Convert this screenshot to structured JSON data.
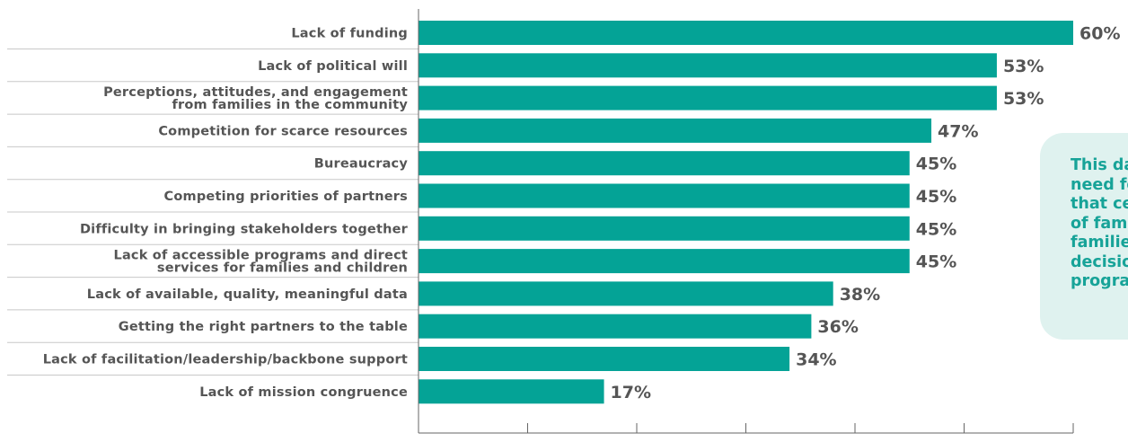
{
  "chart_data": {
    "type": "bar",
    "orientation": "horizontal",
    "categories": [
      "Lack of funding",
      "Lack of political will",
      "Perceptions, attitudes, and engagement\nfrom families in the community",
      "Competition for scarce resources",
      "Bureaucracy",
      "Competing priorities of partners",
      "Difficulty in bringing stakeholders together",
      "Lack of accessible programs and direct\nservices for families and children",
      "Lack of available, quality, meaningful data",
      "Getting the right partners to the table",
      "Lack of facilitation/leadership/backbone support",
      "Lack of mission congruence"
    ],
    "values": [
      60,
      53,
      53,
      47,
      45,
      45,
      45,
      45,
      38,
      36,
      34,
      17
    ],
    "value_labels": [
      "60%",
      "53%",
      "53%",
      "47%",
      "45%",
      "45%",
      "45%",
      "45%",
      "38%",
      "36%",
      "34%",
      "17%"
    ],
    "xlim": [
      0,
      60
    ],
    "xticks": [
      "0%",
      "10%",
      "20%",
      "30%",
      "40%",
      "50%",
      "60%"
    ],
    "bar_color": "#04a396",
    "label_color": "#555555",
    "grid": false
  },
  "callout": {
    "lines": [
      "This data",
      "need for",
      "that cen",
      "of famili",
      "families",
      "decision",
      "program"
    ],
    "text_color": "#17a398",
    "background": "#dff2ef"
  }
}
